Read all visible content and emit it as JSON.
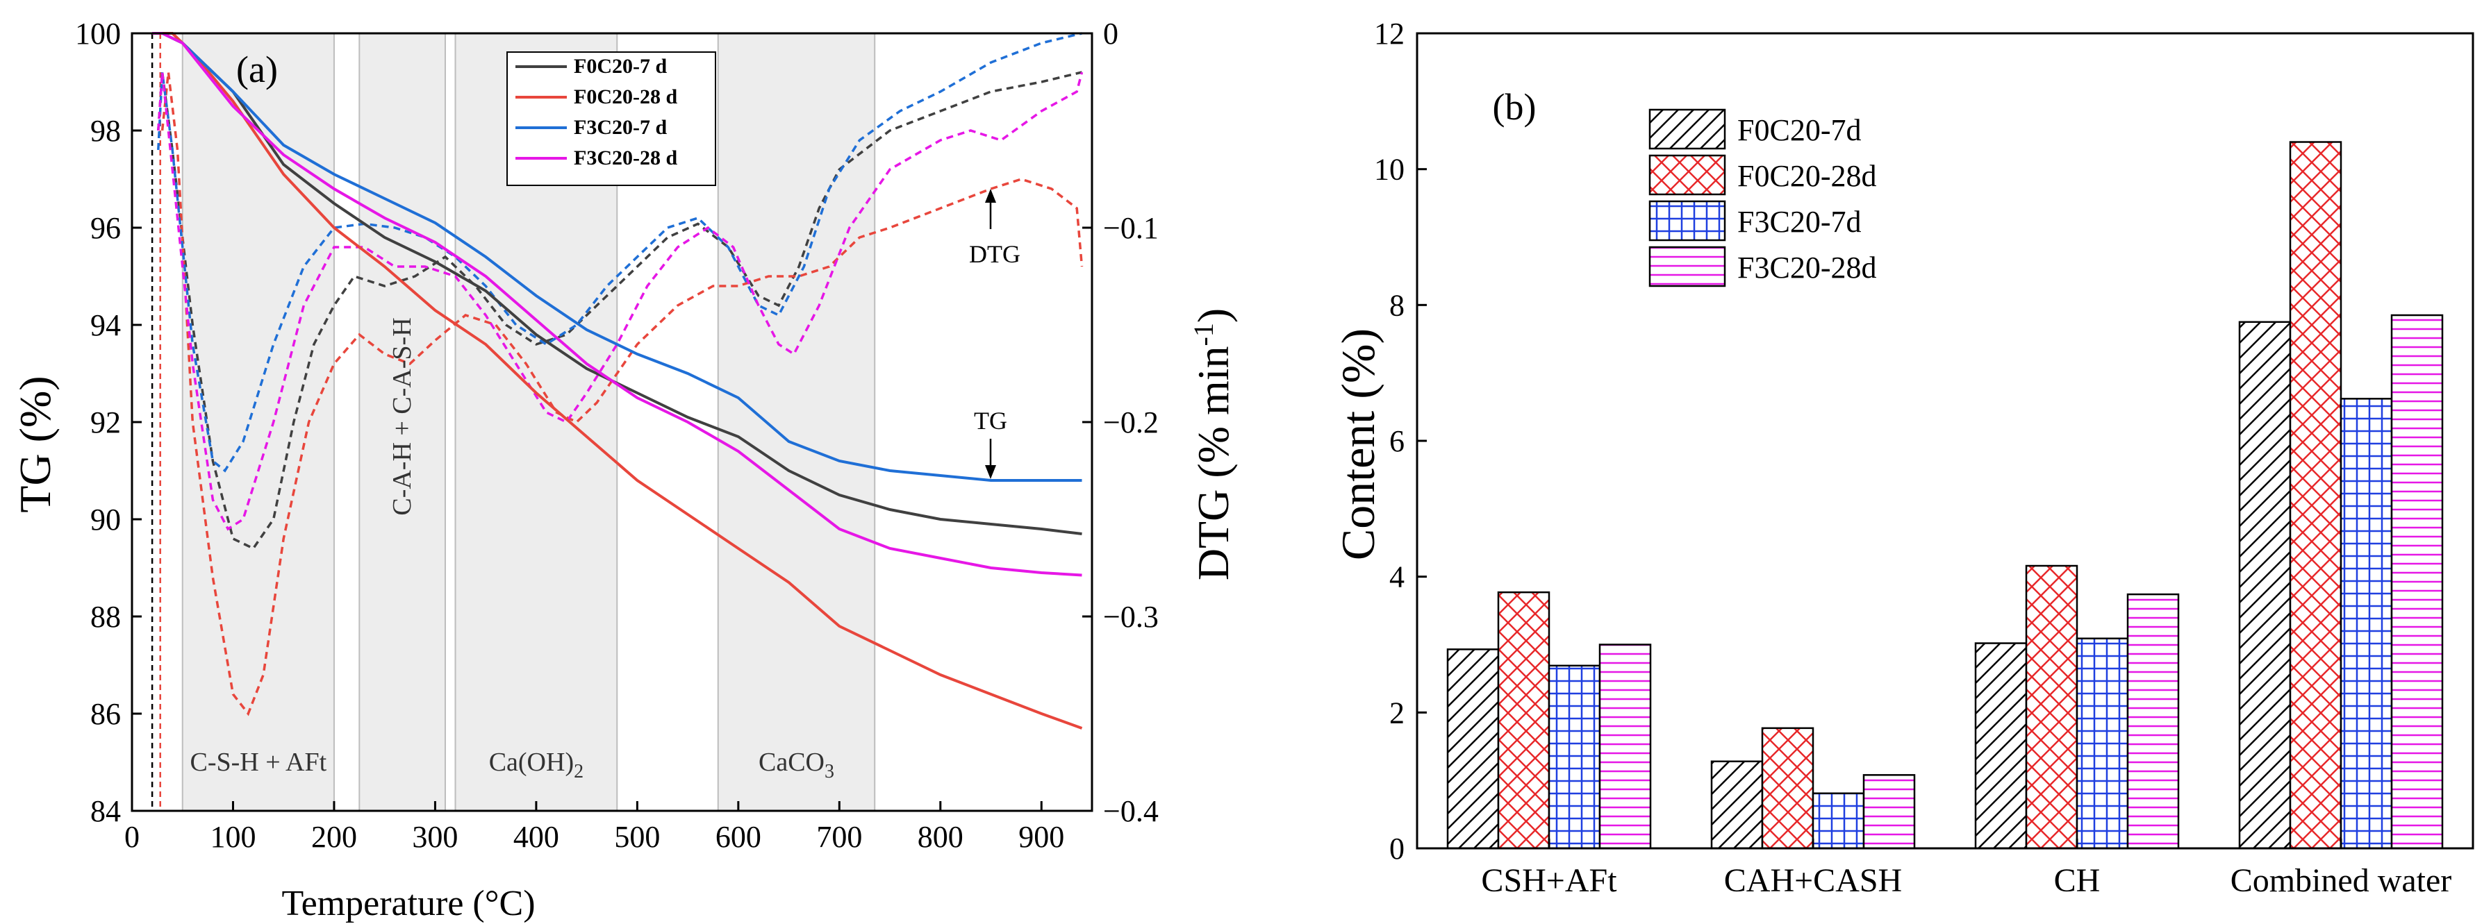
{
  "chart_data": [
    {
      "panel_label": "(a)",
      "type": "line",
      "xlabel": "Temperature (°C)",
      "ylabel": "TG (%)",
      "ylabel_right": "DTG (% min-1)",
      "xlim": [
        0,
        950
      ],
      "ylim": [
        84,
        100
      ],
      "ylim_right": [
        -0.4,
        0.0
      ],
      "x_ticks": [
        "0",
        "100",
        "200",
        "300",
        "400",
        "500",
        "600",
        "700",
        "800",
        "900"
      ],
      "y_ticks": [
        "84",
        "86",
        "88",
        "90",
        "92",
        "94",
        "96",
        "98",
        "100"
      ],
      "y_right_ticks": [
        "−0.4",
        "−0.3",
        "−0.2",
        "−0.1",
        "0"
      ],
      "regions": [
        {
          "from": 50,
          "to": 200,
          "label": "C-S-H + AFt",
          "vertical": false
        },
        {
          "from": 225,
          "to": 310,
          "label": "C-A-H + C-A-S-H",
          "vertical": true
        },
        {
          "from": 320,
          "to": 480,
          "label": "Ca(OH)",
          "sub": "2",
          "vertical": false
        },
        {
          "from": 580,
          "to": 735,
          "label": "CaCO",
          "sub": "3",
          "vertical": false
        }
      ],
      "annotations": {
        "dtg": "DTG",
        "tg": "TG"
      },
      "series": [
        {
          "name": "F0C20-7 d",
          "color": "#404040",
          "tg": [
            [
              20,
              100
            ],
            [
              30,
              100
            ],
            [
              50,
              99.8
            ],
            [
              100,
              98.8
            ],
            [
              150,
              97.3
            ],
            [
              200,
              96.5
            ],
            [
              250,
              95.8
            ],
            [
              300,
              95.3
            ],
            [
              350,
              94.7
            ],
            [
              400,
              93.8
            ],
            [
              450,
              93.1
            ],
            [
              500,
              92.6
            ],
            [
              550,
              92.1
            ],
            [
              600,
              91.7
            ],
            [
              650,
              91.0
            ],
            [
              700,
              90.5
            ],
            [
              750,
              90.2
            ],
            [
              800,
              90.0
            ],
            [
              850,
              89.9
            ],
            [
              900,
              89.8
            ],
            [
              940,
              89.7
            ]
          ],
          "dtg": [
            [
              26,
              -0.05
            ],
            [
              30,
              -0.02
            ],
            [
              40,
              -0.06
            ],
            [
              60,
              -0.15
            ],
            [
              80,
              -0.22
            ],
            [
              100,
              -0.26
            ],
            [
              120,
              -0.265
            ],
            [
              140,
              -0.25
            ],
            [
              160,
              -0.2
            ],
            [
              180,
              -0.16
            ],
            [
              200,
              -0.14
            ],
            [
              220,
              -0.125
            ],
            [
              250,
              -0.13
            ],
            [
              280,
              -0.125
            ],
            [
              310,
              -0.115
            ],
            [
              340,
              -0.13
            ],
            [
              370,
              -0.15
            ],
            [
              400,
              -0.16
            ],
            [
              430,
              -0.155
            ],
            [
              460,
              -0.14
            ],
            [
              500,
              -0.12
            ],
            [
              530,
              -0.105
            ],
            [
              560,
              -0.098
            ],
            [
              590,
              -0.11
            ],
            [
              620,
              -0.135
            ],
            [
              640,
              -0.14
            ],
            [
              660,
              -0.12
            ],
            [
              680,
              -0.09
            ],
            [
              700,
              -0.07
            ],
            [
              750,
              -0.05
            ],
            [
              800,
              -0.04
            ],
            [
              850,
              -0.03
            ],
            [
              900,
              -0.025
            ],
            [
              940,
              -0.02
            ]
          ]
        },
        {
          "name": "F0C20-28 d",
          "color": "#e8463c",
          "tg": [
            [
              20,
              100
            ],
            [
              40,
              100
            ],
            [
              60,
              99.6
            ],
            [
              100,
              98.6
            ],
            [
              150,
              97.1
            ],
            [
              200,
              96.0
            ],
            [
              250,
              95.2
            ],
            [
              300,
              94.3
            ],
            [
              350,
              93.6
            ],
            [
              400,
              92.6
            ],
            [
              450,
              91.7
            ],
            [
              500,
              90.8
            ],
            [
              550,
              90.1
            ],
            [
              600,
              89.4
            ],
            [
              650,
              88.7
            ],
            [
              700,
              87.8
            ],
            [
              750,
              87.3
            ],
            [
              800,
              86.8
            ],
            [
              850,
              86.4
            ],
            [
              900,
              86.0
            ],
            [
              940,
              85.7
            ]
          ],
          "dtg": [
            [
              30,
              -0.05
            ],
            [
              36,
              -0.02
            ],
            [
              45,
              -0.06
            ],
            [
              60,
              -0.2
            ],
            [
              80,
              -0.28
            ],
            [
              100,
              -0.34
            ],
            [
              115,
              -0.35
            ],
            [
              130,
              -0.33
            ],
            [
              150,
              -0.26
            ],
            [
              175,
              -0.2
            ],
            [
              200,
              -0.17
            ],
            [
              225,
              -0.155
            ],
            [
              250,
              -0.165
            ],
            [
              275,
              -0.17
            ],
            [
              300,
              -0.158
            ],
            [
              330,
              -0.145
            ],
            [
              360,
              -0.15
            ],
            [
              390,
              -0.17
            ],
            [
              420,
              -0.195
            ],
            [
              440,
              -0.2
            ],
            [
              460,
              -0.19
            ],
            [
              500,
              -0.16
            ],
            [
              540,
              -0.14
            ],
            [
              575,
              -0.13
            ],
            [
              600,
              -0.13
            ],
            [
              630,
              -0.125
            ],
            [
              660,
              -0.125
            ],
            [
              690,
              -0.12
            ],
            [
              720,
              -0.105
            ],
            [
              750,
              -0.1
            ],
            [
              800,
              -0.09
            ],
            [
              850,
              -0.08
            ],
            [
              880,
              -0.075
            ],
            [
              910,
              -0.08
            ],
            [
              935,
              -0.09
            ],
            [
              940,
              -0.12
            ]
          ]
        },
        {
          "name": "F3C20-7 d",
          "color": "#1f6fd6",
          "tg": [
            [
              20,
              100
            ],
            [
              30,
              100
            ],
            [
              50,
              99.8
            ],
            [
              100,
              98.8
            ],
            [
              150,
              97.7
            ],
            [
              200,
              97.1
            ],
            [
              250,
              96.6
            ],
            [
              300,
              96.1
            ],
            [
              350,
              95.4
            ],
            [
              400,
              94.6
            ],
            [
              450,
              93.9
            ],
            [
              500,
              93.4
            ],
            [
              550,
              93.0
            ],
            [
              600,
              92.5
            ],
            [
              650,
              91.6
            ],
            [
              700,
              91.2
            ],
            [
              750,
              91.0
            ],
            [
              800,
              90.9
            ],
            [
              850,
              90.8
            ],
            [
              900,
              90.8
            ],
            [
              940,
              90.8
            ]
          ],
          "dtg": [
            [
              26,
              -0.06
            ],
            [
              30,
              -0.02
            ],
            [
              40,
              -0.06
            ],
            [
              60,
              -0.16
            ],
            [
              80,
              -0.22
            ],
            [
              92,
              -0.225
            ],
            [
              110,
              -0.21
            ],
            [
              140,
              -0.16
            ],
            [
              170,
              -0.12
            ],
            [
              200,
              -0.1
            ],
            [
              230,
              -0.098
            ],
            [
              260,
              -0.1
            ],
            [
              290,
              -0.105
            ],
            [
              320,
              -0.115
            ],
            [
              350,
              -0.13
            ],
            [
              380,
              -0.15
            ],
            [
              410,
              -0.16
            ],
            [
              440,
              -0.15
            ],
            [
              470,
              -0.13
            ],
            [
              500,
              -0.115
            ],
            [
              530,
              -0.1
            ],
            [
              560,
              -0.095
            ],
            [
              590,
              -0.11
            ],
            [
              620,
              -0.14
            ],
            [
              640,
              -0.145
            ],
            [
              665,
              -0.12
            ],
            [
              690,
              -0.08
            ],
            [
              720,
              -0.055
            ],
            [
              760,
              -0.04
            ],
            [
              800,
              -0.03
            ],
            [
              850,
              -0.015
            ],
            [
              900,
              -0.005
            ],
            [
              940,
              0.0
            ]
          ]
        },
        {
          "name": "F3C20-28 d",
          "color": "#e617e6",
          "tg": [
            [
              20,
              100
            ],
            [
              30,
              100
            ],
            [
              50,
              99.8
            ],
            [
              100,
              98.5
            ],
            [
              150,
              97.5
            ],
            [
              200,
              96.8
            ],
            [
              250,
              96.2
            ],
            [
              300,
              95.7
            ],
            [
              350,
              95.0
            ],
            [
              400,
              94.1
            ],
            [
              450,
              93.2
            ],
            [
              500,
              92.5
            ],
            [
              550,
              92.0
            ],
            [
              600,
              91.4
            ],
            [
              650,
              90.6
            ],
            [
              700,
              89.8
            ],
            [
              750,
              89.4
            ],
            [
              800,
              89.2
            ],
            [
              850,
              89.0
            ],
            [
              900,
              88.9
            ],
            [
              940,
              88.85
            ]
          ],
          "dtg": [
            [
              26,
              -0.05
            ],
            [
              30,
              -0.02
            ],
            [
              40,
              -0.07
            ],
            [
              60,
              -0.17
            ],
            [
              80,
              -0.24
            ],
            [
              95,
              -0.255
            ],
            [
              110,
              -0.25
            ],
            [
              140,
              -0.2
            ],
            [
              170,
              -0.14
            ],
            [
              200,
              -0.11
            ],
            [
              230,
              -0.11
            ],
            [
              260,
              -0.12
            ],
            [
              290,
              -0.12
            ],
            [
              320,
              -0.125
            ],
            [
              350,
              -0.145
            ],
            [
              380,
              -0.17
            ],
            [
              410,
              -0.195
            ],
            [
              430,
              -0.2
            ],
            [
              450,
              -0.185
            ],
            [
              480,
              -0.16
            ],
            [
              510,
              -0.13
            ],
            [
              540,
              -0.11
            ],
            [
              570,
              -0.1
            ],
            [
              595,
              -0.11
            ],
            [
              620,
              -0.14
            ],
            [
              640,
              -0.16
            ],
            [
              655,
              -0.165
            ],
            [
              680,
              -0.14
            ],
            [
              710,
              -0.1
            ],
            [
              750,
              -0.07
            ],
            [
              800,
              -0.055
            ],
            [
              830,
              -0.05
            ],
            [
              860,
              -0.055
            ],
            [
              900,
              -0.04
            ],
            [
              935,
              -0.03
            ],
            [
              940,
              -0.02
            ]
          ]
        }
      ]
    },
    {
      "panel_label": "(b)",
      "type": "bar",
      "xlabel": "",
      "ylabel": "Content (%)",
      "ylim": [
        0,
        12
      ],
      "y_ticks": [
        "0",
        "2",
        "4",
        "6",
        "8",
        "10",
        "12"
      ],
      "categories": [
        "CSH+AFt",
        "CAH+CASH",
        "CH",
        "Combined water"
      ],
      "series": [
        {
          "name": "F0C20-7d",
          "pattern": "diagonal",
          "color": "#000000",
          "values": [
            2.93,
            1.28,
            3.02,
            7.75
          ]
        },
        {
          "name": "F0C20-28d",
          "pattern": "crosshatch",
          "color": "#e8282a",
          "values": [
            3.77,
            1.77,
            4.16,
            10.4
          ]
        },
        {
          "name": "F3C20-7d",
          "pattern": "grid",
          "color": "#1f3fe0",
          "values": [
            2.69,
            0.81,
            3.09,
            6.62
          ]
        },
        {
          "name": "F3C20-28d",
          "pattern": "horizontal",
          "color": "#e617e6",
          "values": [
            3.0,
            1.08,
            3.74,
            7.85
          ]
        }
      ]
    }
  ]
}
